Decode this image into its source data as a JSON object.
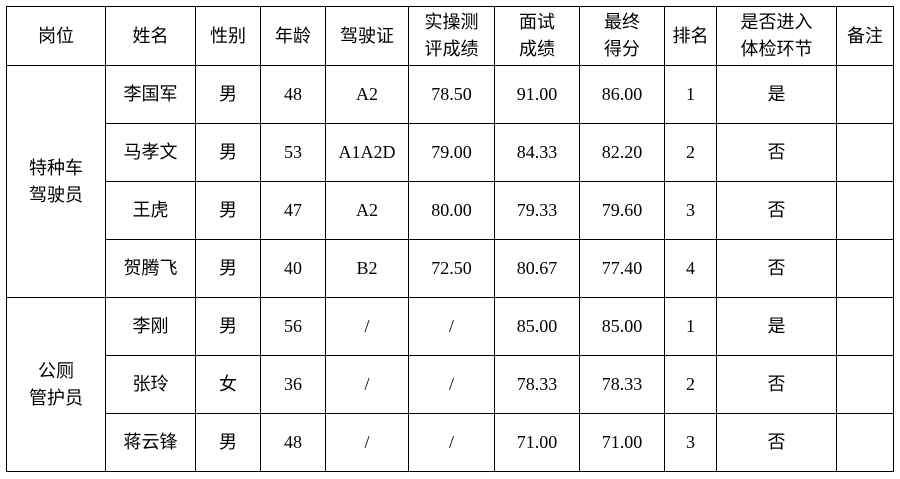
{
  "headers": [
    "岗位",
    "姓名",
    "性别",
    "年龄",
    "驾驶证",
    "实操测\n评成绩",
    "面试\n成绩",
    "最终\n得分",
    "排名",
    "是否进入\n体检环节",
    "备注"
  ],
  "groups": [
    {
      "position": "特种车\n驾驶员",
      "rows": [
        [
          "李国军",
          "男",
          "48",
          "A2",
          "78.50",
          "91.00",
          "86.00",
          "1",
          "是",
          ""
        ],
        [
          "马孝文",
          "男",
          "53",
          "A1A2D",
          "79.00",
          "84.33",
          "82.20",
          "2",
          "否",
          ""
        ],
        [
          "王虎",
          "男",
          "47",
          "A2",
          "80.00",
          "79.33",
          "79.60",
          "3",
          "否",
          ""
        ],
        [
          "贺腾飞",
          "男",
          "40",
          "B2",
          "72.50",
          "80.67",
          "77.40",
          "4",
          "否",
          ""
        ]
      ]
    },
    {
      "position": "公厕\n管护员",
      "rows": [
        [
          "李刚",
          "男",
          "56",
          "/",
          "/",
          "85.00",
          "85.00",
          "1",
          "是",
          ""
        ],
        [
          "张玲",
          "女",
          "36",
          "/",
          "/",
          "78.33",
          "78.33",
          "2",
          "否",
          ""
        ],
        [
          "蒋云锋",
          "男",
          "48",
          "/",
          "/",
          "71.00",
          "71.00",
          "3",
          "否",
          ""
        ]
      ]
    }
  ]
}
